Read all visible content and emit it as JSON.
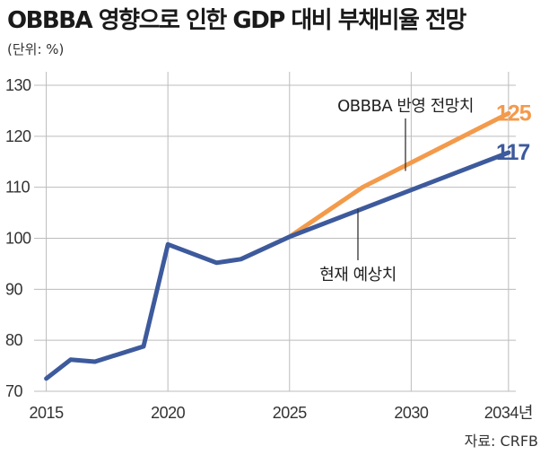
{
  "chart_data": {
    "type": "line",
    "title": "OBBBA 영향으로 인한 GDP 대비 부채비율 전망",
    "unit_label": "(단위: %)",
    "source": "자료: CRFB",
    "xlabel": "",
    "ylabel": "",
    "xlim": [
      2014.5,
      2034.3
    ],
    "ylim": [
      70,
      130
    ],
    "y_ticks": [
      "70",
      "80",
      "90",
      "100",
      "110",
      "120",
      "130"
    ],
    "x_ticks": [
      {
        "value": 2015,
        "label": "2015"
      },
      {
        "value": 2020,
        "label": "2020"
      },
      {
        "value": 2025,
        "label": "2025"
      },
      {
        "value": 2030,
        "label": "2030"
      },
      {
        "value": 2034,
        "label": "2034년"
      }
    ],
    "grid": true,
    "series": [
      {
        "name": "OBBBA 반영 전망치",
        "color": "#f39a4b",
        "x": [
          2025,
          2028,
          2034
        ],
        "y": [
          100.3,
          110,
          124.5
        ],
        "end_label": "125"
      },
      {
        "name": "현재 예상치",
        "color": "#3d5a9c",
        "x": [
          2015,
          2016,
          2017,
          2019,
          2020,
          2022,
          2023,
          2025,
          2034
        ],
        "y": [
          72.5,
          76.2,
          75.8,
          78.8,
          98.8,
          95.2,
          95.9,
          100.3,
          116.8
        ],
        "end_label": "117"
      }
    ]
  }
}
